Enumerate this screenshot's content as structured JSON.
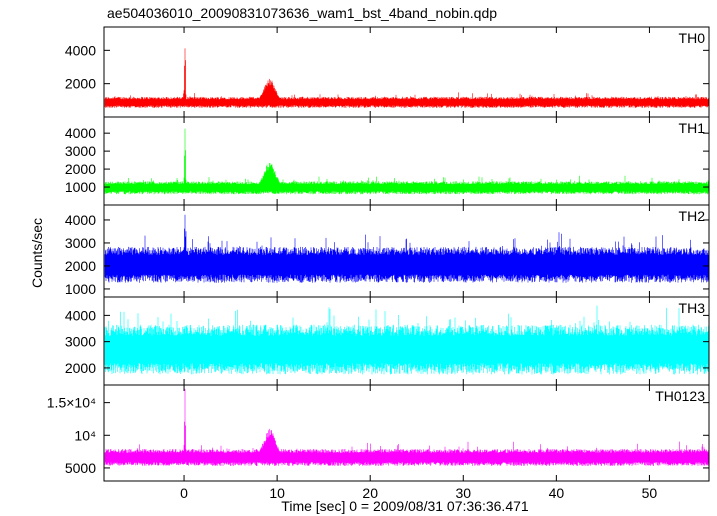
{
  "title": "ae504036010_20090831073636_wam1_bst_4band_nobin.qdp",
  "xlabel": "Time [sec] 0 = 2009/08/31 07:36:36.471",
  "ylabel": "Counts/sec",
  "chart_data": [
    {
      "type": "line",
      "name": "TH0",
      "color": "#ff0000",
      "xlim": [
        -8.6,
        56.4
      ],
      "ylim": [
        0,
        5400
      ],
      "yticks": [
        {
          "value": 2000,
          "label": "2000"
        },
        {
          "value": 4000,
          "label": "4000"
        }
      ],
      "baseline": {
        "mean": 880,
        "amp": 330
      },
      "features": [
        {
          "x": 0.1,
          "peak": 5300,
          "width": 0.08
        },
        {
          "x": 9.2,
          "peak": 2300,
          "width": 0.9
        }
      ]
    },
    {
      "type": "line",
      "name": "TH1",
      "color": "#00ff00",
      "xlim": [
        -8.6,
        56.4
      ],
      "ylim": [
        0,
        4900
      ],
      "yticks": [
        {
          "value": 1000,
          "label": "1000"
        },
        {
          "value": 2000,
          "label": "2000"
        },
        {
          "value": 3000,
          "label": "3000"
        },
        {
          "value": 4000,
          "label": "4000"
        }
      ],
      "baseline": {
        "mean": 960,
        "amp": 360
      },
      "features": [
        {
          "x": 0.1,
          "peak": 4800,
          "width": 0.08
        },
        {
          "x": 9.2,
          "peak": 2400,
          "width": 0.9
        }
      ]
    },
    {
      "type": "line",
      "name": "TH2",
      "color": "#0000ff",
      "xlim": [
        -8.6,
        56.4
      ],
      "ylim": [
        650,
        4650
      ],
      "yticks": [
        {
          "value": 1000,
          "label": "1000"
        },
        {
          "value": 2000,
          "label": "2000"
        },
        {
          "value": 3000,
          "label": "3000"
        },
        {
          "value": 4000,
          "label": "4000"
        }
      ],
      "baseline": {
        "mean": 2050,
        "amp": 780
      },
      "features": [
        {
          "x": 0.1,
          "peak": 4600,
          "width": 0.08
        }
      ]
    },
    {
      "type": "line",
      "name": "TH3",
      "color": "#00ffff",
      "xlim": [
        -8.6,
        56.4
      ],
      "ylim": [
        1350,
        4700
      ],
      "yticks": [
        {
          "value": 2000,
          "label": "2000"
        },
        {
          "value": 3000,
          "label": "3000"
        },
        {
          "value": 4000,
          "label": "4000"
        }
      ],
      "baseline": {
        "mean": 2700,
        "amp": 950
      },
      "features": []
    },
    {
      "type": "line",
      "name": "TH0123",
      "color": "#ff00ff",
      "xlim": [
        -8.6,
        56.4
      ],
      "ylim": [
        3000,
        17700
      ],
      "yticks": [
        {
          "value": 5000,
          "label": "5000"
        },
        {
          "value": 10000,
          "label": "10⁴"
        },
        {
          "value": 15000,
          "label": "1.5×10⁴"
        }
      ],
      "baseline": {
        "mean": 6600,
        "amp": 1300
      },
      "features": [
        {
          "x": 0.1,
          "peak": 17200,
          "width": 0.08
        },
        {
          "x": 9.2,
          "peak": 11000,
          "width": 0.9
        }
      ]
    }
  ],
  "xaxis": {
    "ticks": [
      {
        "value": 0,
        "label": "0"
      },
      {
        "value": 10,
        "label": "10"
      },
      {
        "value": 20,
        "label": "20"
      },
      {
        "value": 30,
        "label": "30"
      },
      {
        "value": 40,
        "label": "40"
      },
      {
        "value": 50,
        "label": "50"
      }
    ]
  }
}
